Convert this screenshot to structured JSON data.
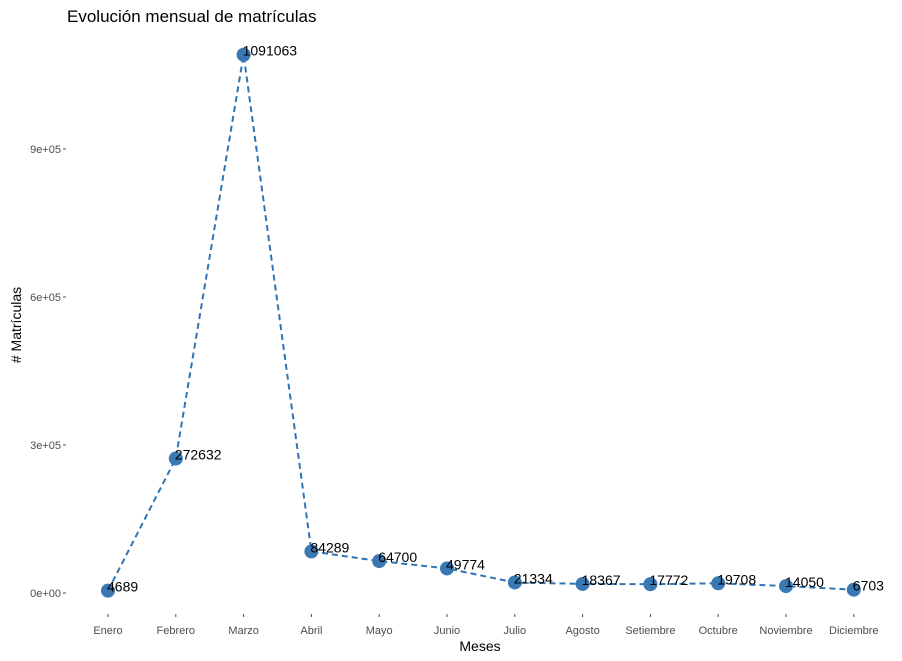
{
  "chart_data": {
    "type": "line",
    "title": "Evolución mensual de matrículas",
    "xlabel": "Meses",
    "ylabel": "# Matrículas",
    "categories": [
      "Enero",
      "Febrero",
      "Marzo",
      "Abril",
      "Mayo",
      "Junio",
      "Julio",
      "Agosto",
      "Setiembre",
      "Octubre",
      "Noviembre",
      "Diciembre"
    ],
    "values": [
      4689,
      272632,
      1091063,
      84289,
      64700,
      49774,
      21334,
      18367,
      17772,
      19708,
      14050,
      6703
    ],
    "yticks": [
      0,
      300000,
      600000,
      900000
    ],
    "ytick_labels": [
      "0e+00",
      "3e+05",
      "6e+05",
      "9e+05"
    ],
    "line_color": "#2f75b5",
    "point_color": "#3a78b4",
    "line_style": "dashed",
    "grid": false,
    "legend": "none"
  }
}
